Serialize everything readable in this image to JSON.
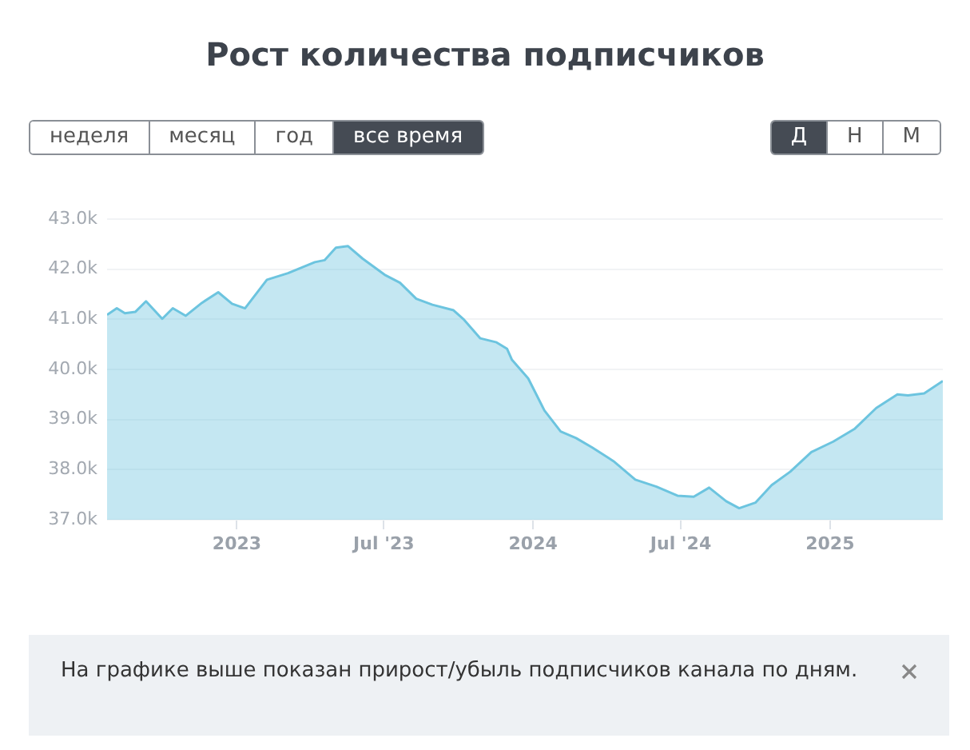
{
  "chart_data": {
    "type": "area",
    "title": "Рост количества подписчиков",
    "x": [
      "2022-07-25",
      "2022-08-06",
      "2022-08-16",
      "2022-08-29",
      "2022-09-11",
      "2022-10-01",
      "2022-10-14",
      "2022-10-30",
      "2022-11-19",
      "2022-12-09",
      "2022-12-26",
      "2023-01-11",
      "2023-02-07",
      "2023-03-05",
      "2023-04-07",
      "2023-04-19",
      "2023-05-03",
      "2023-05-18",
      "2023-06-05",
      "2023-07-02",
      "2023-07-21",
      "2023-08-10",
      "2023-08-30",
      "2023-09-25",
      "2023-10-08",
      "2023-10-28",
      "2023-11-17",
      "2023-11-30",
      "2023-12-06",
      "2023-12-26",
      "2024-01-15",
      "2024-02-04",
      "2024-02-23",
      "2024-03-14",
      "2024-04-09",
      "2024-05-06",
      "2024-06-01",
      "2024-06-27",
      "2024-07-17",
      "2024-08-05",
      "2024-08-26",
      "2024-09-11",
      "2024-10-01",
      "2024-10-21",
      "2024-11-13",
      "2024-12-09",
      "2025-01-05",
      "2025-01-31",
      "2025-02-27",
      "2025-03-25",
      "2025-04-07",
      "2025-04-27",
      "2025-05-20"
    ],
    "series": [
      {
        "color": "#6cc4df",
        "values": [
          41090,
          41220,
          41120,
          41150,
          41360,
          41010,
          41220,
          41070,
          41330,
          41540,
          41310,
          41220,
          41790,
          41920,
          42140,
          42180,
          42430,
          42460,
          42210,
          41890,
          41730,
          41410,
          41290,
          41180,
          40990,
          40620,
          40540,
          40410,
          40190,
          39820,
          39180,
          38760,
          38630,
          38440,
          38170,
          37800,
          37660,
          37480,
          37460,
          37640,
          37370,
          37230,
          37340,
          37690,
          37960,
          38350,
          38560,
          38810,
          39230,
          39500,
          39480,
          39520,
          39770
        ]
      }
    ],
    "xlim": [
      "2022-07-25",
      "2025-05-20"
    ],
    "xticks": [
      "2023",
      {
        "value": "2023-07",
        "label": "Jul '23"
      },
      "2024",
      {
        "value": "2024-07",
        "label": "Jul '24"
      },
      "2025"
    ],
    "ylim": [
      37000,
      43000
    ],
    "yticks": [
      {
        "value": 37000,
        "label": "37.0k"
      },
      {
        "value": 38000,
        "label": "38.0k"
      },
      {
        "value": 39000,
        "label": "39.0k"
      },
      {
        "value": 40000,
        "label": "40.0k"
      },
      {
        "value": 41000,
        "label": "41.0k"
      },
      {
        "value": 42000,
        "label": "42.0k"
      },
      {
        "value": 43000,
        "label": "43.0k"
      }
    ],
    "grid": "y",
    "marker": "none",
    "annotations": [
      "неделя",
      "месяц",
      "год",
      "все время",
      "Д",
      "Н",
      "М",
      "На графике выше показан прирост/убыль подписчиков канала по дням."
    ]
  }
}
